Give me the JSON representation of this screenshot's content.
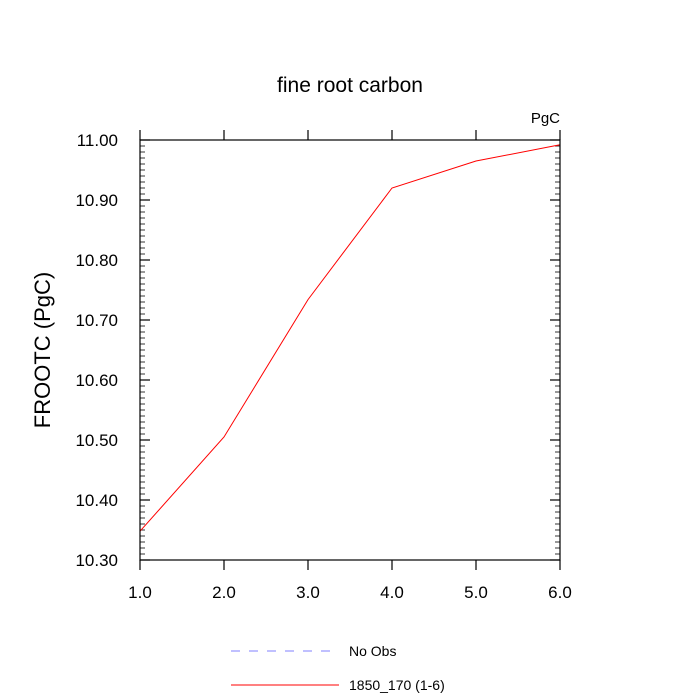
{
  "chart_data": {
    "type": "line",
    "title": "fine root carbon",
    "units_label": "PgC",
    "ylabel": "FROOTC  (PgC)",
    "xlabel": "",
    "xlim": [
      1.0,
      6.0
    ],
    "ylim": [
      10.3,
      11.0
    ],
    "x_ticks": [
      "1.0",
      "2.0",
      "3.0",
      "4.0",
      "5.0",
      "6.0"
    ],
    "y_ticks": [
      "10.30",
      "10.40",
      "10.50",
      "10.60",
      "10.70",
      "10.80",
      "10.90",
      "11.00"
    ],
    "series": [
      {
        "name": "1850_170 (1-6)",
        "color": "#ff0000",
        "style": "solid",
        "x": [
          1.0,
          2.0,
          3.0,
          4.0,
          5.0,
          6.0
        ],
        "values": [
          10.348,
          10.505,
          10.734,
          10.92,
          10.965,
          10.992
        ]
      }
    ],
    "legend": [
      {
        "label": "No Obs",
        "color": "#8080ff",
        "style": "dashed"
      },
      {
        "label": "1850_170 (1-6)",
        "color": "#ff0000",
        "style": "solid"
      }
    ]
  }
}
